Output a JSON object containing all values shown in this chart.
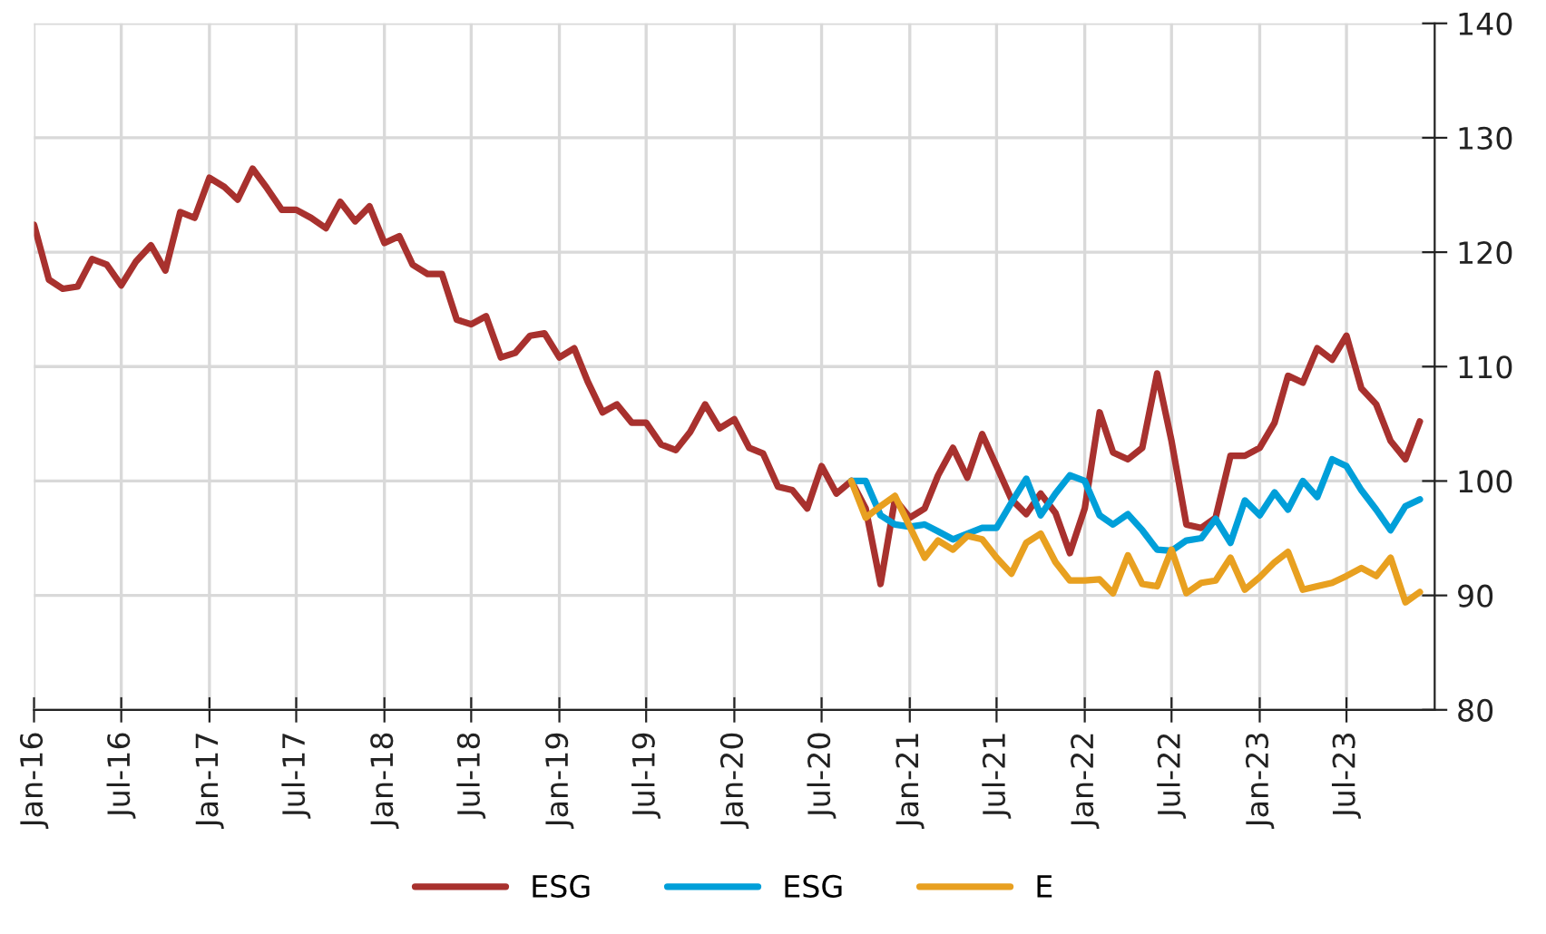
{
  "chart_data": {
    "type": "line",
    "series": [
      {
        "name": "ESG",
        "color": "#a8312e",
        "x": [
          "2016-01",
          "2016-02",
          "2016-03",
          "2016-04",
          "2016-05",
          "2016-06",
          "2016-07",
          "2016-08",
          "2016-09",
          "2016-10",
          "2016-11",
          "2016-12",
          "2017-01",
          "2017-02",
          "2017-03",
          "2017-04",
          "2017-05",
          "2017-06",
          "2017-07",
          "2017-08",
          "2017-09",
          "2017-10",
          "2017-11",
          "2017-12",
          "2018-01",
          "2018-02",
          "2018-03",
          "2018-04",
          "2018-05",
          "2018-06",
          "2018-07",
          "2018-08",
          "2018-09",
          "2018-10",
          "2018-11",
          "2018-12",
          "2019-01",
          "2019-02",
          "2019-03",
          "2019-04",
          "2019-05",
          "2019-06",
          "2019-07",
          "2019-08",
          "2019-09",
          "2019-10",
          "2019-11",
          "2019-12",
          "2020-01",
          "2020-02",
          "2020-03",
          "2020-04",
          "2020-05",
          "2020-06",
          "2020-07",
          "2020-08",
          "2020-09",
          "2020-10",
          "2020-11",
          "2020-12",
          "2021-01",
          "2021-02",
          "2021-03",
          "2021-04",
          "2021-05",
          "2021-06",
          "2021-07",
          "2021-08",
          "2021-09",
          "2021-10",
          "2021-11",
          "2021-12",
          "2022-01",
          "2022-02",
          "2022-03",
          "2022-04",
          "2022-05",
          "2022-06",
          "2022-07",
          "2022-08",
          "2022-09",
          "2022-10",
          "2022-11",
          "2022-12",
          "2023-01",
          "2023-02",
          "2023-03",
          "2023-04",
          "2023-05",
          "2023-06",
          "2023-07",
          "2023-08",
          "2023-09",
          "2023-10",
          "2023-11",
          "2023-12"
        ],
        "values": [
          122.4,
          117.6,
          116.8,
          117.0,
          119.4,
          118.9,
          117.1,
          119.2,
          120.6,
          118.4,
          123.5,
          123.0,
          126.5,
          125.7,
          124.6,
          127.3,
          125.6,
          123.7,
          123.7,
          123.0,
          122.1,
          124.4,
          122.7,
          124.0,
          120.8,
          121.4,
          118.9,
          118.1,
          118.1,
          114.1,
          113.7,
          114.4,
          110.8,
          111.2,
          112.7,
          112.9,
          110.8,
          111.6,
          108.7,
          106.0,
          106.7,
          105.1,
          105.1,
          103.2,
          102.7,
          104.3,
          106.7,
          104.6,
          105.4,
          102.9,
          102.4,
          99.5,
          99.2,
          97.6,
          101.3,
          98.9,
          100.0,
          97.6,
          91.0,
          98.4,
          96.8,
          97.6,
          100.5,
          102.9,
          100.3,
          104.1,
          101.3,
          98.4,
          97.1,
          98.9,
          97.2,
          93.7,
          97.6,
          106.0,
          102.5,
          101.9,
          102.9,
          109.4,
          103.5,
          96.2,
          95.9,
          96.8,
          102.2,
          102.2,
          102.9,
          105.1,
          109.2,
          108.6,
          111.6,
          110.6,
          112.7,
          108.1,
          106.7,
          103.5,
          101.9,
          105.2
        ]
      },
      {
        "name": "ESG",
        "color": "#009fd9",
        "x": [
          "2020-09",
          "2020-10",
          "2020-11",
          "2020-12",
          "2021-01",
          "2021-02",
          "2021-03",
          "2021-04",
          "2021-05",
          "2021-06",
          "2021-07",
          "2021-08",
          "2021-09",
          "2021-10",
          "2021-11",
          "2021-12",
          "2022-01",
          "2022-02",
          "2022-03",
          "2022-04",
          "2022-05",
          "2022-06",
          "2022-07",
          "2022-08",
          "2022-09",
          "2022-10",
          "2022-11",
          "2022-12",
          "2023-01",
          "2023-02",
          "2023-03",
          "2023-04",
          "2023-05",
          "2023-06",
          "2023-07",
          "2023-08",
          "2023-09",
          "2023-10",
          "2023-11",
          "2023-12"
        ],
        "values": [
          100,
          100,
          97.0,
          96.2,
          96.0,
          96.2,
          95.6,
          94.9,
          95.4,
          95.9,
          95.9,
          98.1,
          100.2,
          97.0,
          98.9,
          100.5,
          100.0,
          97.0,
          96.2,
          97.1,
          95.7,
          94.0,
          93.9,
          94.8,
          95.0,
          96.7,
          94.6,
          98.3,
          97.0,
          99.0,
          97.5,
          100.0,
          98.6,
          101.9,
          101.3,
          99.2,
          97.5,
          95.7,
          97.8,
          98.4
        ]
      },
      {
        "name": "E",
        "color": "#e8a020",
        "x": [
          "2020-09",
          "2020-10",
          "2020-11",
          "2020-12",
          "2021-01",
          "2021-02",
          "2021-03",
          "2021-04",
          "2021-05",
          "2021-06",
          "2021-07",
          "2021-08",
          "2021-09",
          "2021-10",
          "2021-11",
          "2021-12",
          "2022-01",
          "2022-02",
          "2022-03",
          "2022-04",
          "2022-05",
          "2022-06",
          "2022-07",
          "2022-08",
          "2022-09",
          "2022-10",
          "2022-11",
          "2022-12",
          "2023-01",
          "2023-02",
          "2023-03",
          "2023-04",
          "2023-05",
          "2023-06",
          "2023-07",
          "2023-08",
          "2023-09",
          "2023-10",
          "2023-11",
          "2023-12"
        ],
        "values": [
          100,
          96.8,
          97.8,
          98.7,
          96.0,
          93.3,
          94.8,
          94.0,
          95.2,
          94.9,
          93.3,
          91.9,
          94.6,
          95.4,
          92.9,
          91.3,
          91.3,
          91.4,
          90.2,
          93.5,
          91.0,
          90.8,
          94.0,
          90.2,
          91.1,
          91.3,
          93.3,
          90.5,
          91.6,
          92.9,
          93.8,
          90.5,
          90.8,
          91.1,
          91.7,
          92.4,
          91.7,
          93.3,
          89.4,
          90.3
        ]
      }
    ],
    "xlim": [
      "2016-01",
      "2024-01"
    ],
    "xticks": [
      {
        "value": "2016-01",
        "label": "Jan-16"
      },
      {
        "value": "2016-07",
        "label": "Jul-16"
      },
      {
        "value": "2017-01",
        "label": "Jan-17"
      },
      {
        "value": "2017-07",
        "label": "Jul-17"
      },
      {
        "value": "2018-01",
        "label": "Jan-18"
      },
      {
        "value": "2018-07",
        "label": "Jul-18"
      },
      {
        "value": "2019-01",
        "label": "Jan-19"
      },
      {
        "value": "2019-07",
        "label": "Jul-19"
      },
      {
        "value": "2020-01",
        "label": "Jan-20"
      },
      {
        "value": "2020-07",
        "label": "Jul-20"
      },
      {
        "value": "2021-01",
        "label": "Jan-21"
      },
      {
        "value": "2021-07",
        "label": "Jul-21"
      },
      {
        "value": "2022-01",
        "label": "Jan-22"
      },
      {
        "value": "2022-07",
        "label": "Jul-22"
      },
      {
        "value": "2023-01",
        "label": "Jan-23"
      },
      {
        "value": "2023-07",
        "label": "Jul-23"
      }
    ],
    "ylim": [
      80,
      140
    ],
    "yticks": [
      80,
      90,
      100,
      110,
      120,
      130,
      140
    ],
    "grid": true,
    "legend": "bottom",
    "marker": "none",
    "line_style": "solid"
  }
}
